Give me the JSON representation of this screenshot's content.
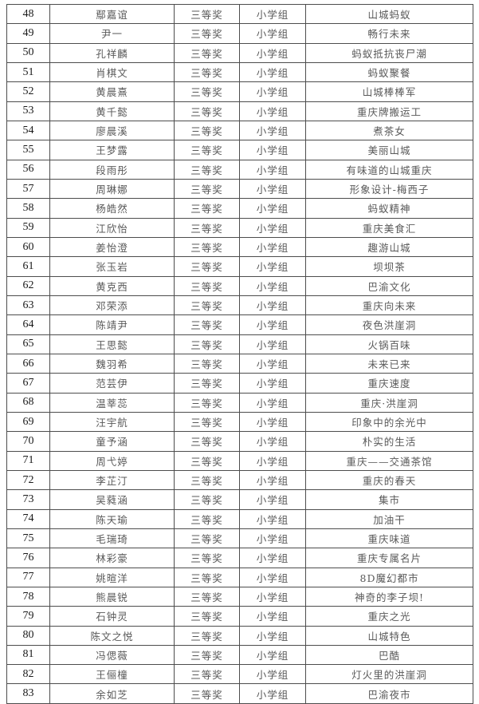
{
  "page": {
    "background_color": "#ffffff",
    "border_color": "#4d4d4d",
    "number_text_color": "#1a1a1a",
    "chinese_text_color": "#595959"
  },
  "table": {
    "rows": [
      {
        "no": "48",
        "name": "鄢嘉谊",
        "award": "三等奖",
        "group": "小学组",
        "work": "山城蚂蚁"
      },
      {
        "no": "49",
        "name": "尹一",
        "award": "三等奖",
        "group": "小学组",
        "work": "畅行未来"
      },
      {
        "no": "50",
        "name": "孔祥麟",
        "award": "三等奖",
        "group": "小学组",
        "work": "蚂蚁抵抗丧尸潮"
      },
      {
        "no": "51",
        "name": "肖棋文",
        "award": "三等奖",
        "group": "小学组",
        "work": "蚂蚁聚餐"
      },
      {
        "no": "52",
        "name": "黄晨熹",
        "award": "三等奖",
        "group": "小学组",
        "work": "山城棒棒军"
      },
      {
        "no": "53",
        "name": "黄千懿",
        "award": "三等奖",
        "group": "小学组",
        "work": "重庆牌搬运工"
      },
      {
        "no": "54",
        "name": "廖晨溪",
        "award": "三等奖",
        "group": "小学组",
        "work": "煮茶女"
      },
      {
        "no": "55",
        "name": "王梦露",
        "award": "三等奖",
        "group": "小学组",
        "work": "美丽山城"
      },
      {
        "no": "56",
        "name": "段雨彤",
        "award": "三等奖",
        "group": "小学组",
        "work": "有味道的山城重庆"
      },
      {
        "no": "57",
        "name": "周琳娜",
        "award": "三等奖",
        "group": "小学组",
        "work": "形象设计-梅西子"
      },
      {
        "no": "58",
        "name": "杨皓然",
        "award": "三等奖",
        "group": "小学组",
        "work": "蚂蚁精神"
      },
      {
        "no": "59",
        "name": "江欣怡",
        "award": "三等奖",
        "group": "小学组",
        "work": "重庆美食汇"
      },
      {
        "no": "60",
        "name": "姜怡澄",
        "award": "三等奖",
        "group": "小学组",
        "work": "趣游山城"
      },
      {
        "no": "61",
        "name": "张玉岩",
        "award": "三等奖",
        "group": "小学组",
        "work": "坝坝茶"
      },
      {
        "no": "62",
        "name": "黄克西",
        "award": "三等奖",
        "group": "小学组",
        "work": "巴渝文化"
      },
      {
        "no": "63",
        "name": "邓荣添",
        "award": "三等奖",
        "group": "小学组",
        "work": "重庆向未来"
      },
      {
        "no": "64",
        "name": "陈靖尹",
        "award": "三等奖",
        "group": "小学组",
        "work": "夜色洪崖洞"
      },
      {
        "no": "65",
        "name": "王思懿",
        "award": "三等奖",
        "group": "小学组",
        "work": "火锅百味"
      },
      {
        "no": "66",
        "name": "魏羽希",
        "award": "三等奖",
        "group": "小学组",
        "work": "未来已来"
      },
      {
        "no": "67",
        "name": "范芸伊",
        "award": "三等奖",
        "group": "小学组",
        "work": "重庆速度"
      },
      {
        "no": "68",
        "name": "温莘蕊",
        "award": "三等奖",
        "group": "小学组",
        "work": "重庆·洪崖洞"
      },
      {
        "no": "69",
        "name": "汪宇航",
        "award": "三等奖",
        "group": "小学组",
        "work": "印象中的余光中"
      },
      {
        "no": "70",
        "name": "童予涵",
        "award": "三等奖",
        "group": "小学组",
        "work": "朴实的生活"
      },
      {
        "no": "71",
        "name": "周弋婷",
        "award": "三等奖",
        "group": "小学组",
        "work": "重庆——交通茶馆"
      },
      {
        "no": "72",
        "name": "李芷汀",
        "award": "三等奖",
        "group": "小学组",
        "work": "重庆的春天"
      },
      {
        "no": "73",
        "name": "吴蕤涵",
        "award": "三等奖",
        "group": "小学组",
        "work": "集市"
      },
      {
        "no": "74",
        "name": "陈天瑜",
        "award": "三等奖",
        "group": "小学组",
        "work": "加油干"
      },
      {
        "no": "75",
        "name": "毛瑞琦",
        "award": "三等奖",
        "group": "小学组",
        "work": "重庆味道"
      },
      {
        "no": "76",
        "name": "林彩豪",
        "award": "三等奖",
        "group": "小学组",
        "work": "重庆专属名片"
      },
      {
        "no": "77",
        "name": "姚暄洋",
        "award": "三等奖",
        "group": "小学组",
        "work": "8D魔幻都市"
      },
      {
        "no": "78",
        "name": "熊晨锐",
        "award": "三等奖",
        "group": "小学组",
        "work": "神奇的李子坝!"
      },
      {
        "no": "79",
        "name": "石钟灵",
        "award": "三等奖",
        "group": "小学组",
        "work": "重庆之光"
      },
      {
        "no": "80",
        "name": "陈文之悦",
        "award": "三等奖",
        "group": "小学组",
        "work": "山城特色"
      },
      {
        "no": "81",
        "name": "冯偲薇",
        "award": "三等奖",
        "group": "小学组",
        "work": "巴酷"
      },
      {
        "no": "82",
        "name": "王俪橦",
        "award": "三等奖",
        "group": "小学组",
        "work": "灯火里的洪崖洞"
      },
      {
        "no": "83",
        "name": "余如芝",
        "award": "三等奖",
        "group": "小学组",
        "work": "巴渝夜市"
      }
    ]
  }
}
